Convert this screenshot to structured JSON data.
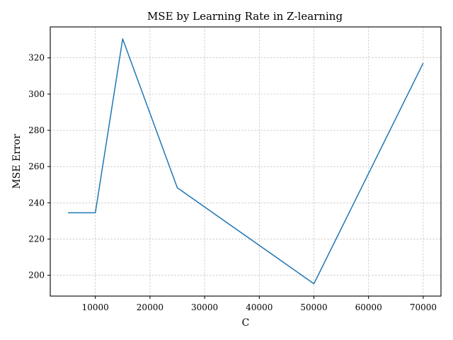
{
  "chart_data": {
    "type": "line",
    "title": "MSE by Learning Rate in Z-learning",
    "xlabel": "C",
    "ylabel": "MSE Error",
    "x": [
      5000,
      10000,
      15000,
      25000,
      50000,
      70000
    ],
    "series": [
      {
        "values": [
          234.5,
          234.5,
          330.5,
          248.3,
          195.3,
          317.1
        ],
        "color": "#1f77b4"
      }
    ],
    "xticks": [
      10000,
      20000,
      30000,
      40000,
      50000,
      60000,
      70000
    ],
    "yticks": [
      200,
      220,
      240,
      260,
      280,
      300,
      320
    ],
    "xlim": [
      1750,
      73250
    ],
    "ylim": [
      188.5,
      337.1
    ],
    "grid": true
  }
}
